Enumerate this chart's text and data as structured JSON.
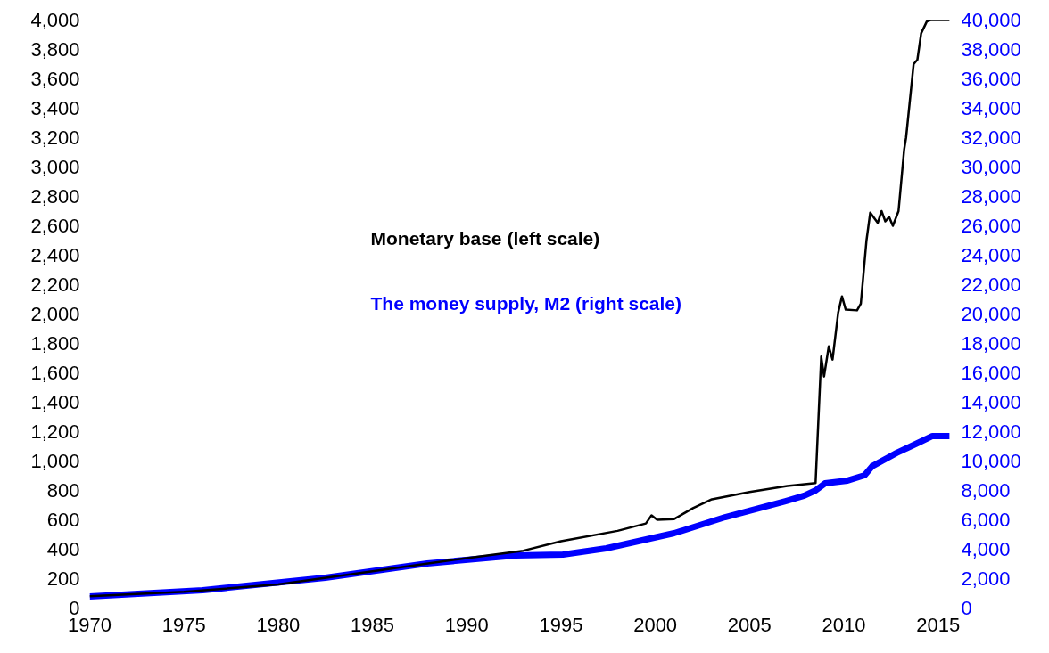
{
  "chart_data": {
    "type": "line",
    "grid": false,
    "xlim": [
      1970,
      2015.7
    ],
    "xticks": [
      1970,
      1975,
      1980,
      1985,
      1990,
      1995,
      2000,
      2005,
      2010,
      2015
    ],
    "ylim": [
      0,
      4000
    ],
    "yticks": [
      0,
      200,
      400,
      600,
      800,
      {
        "value": 1000,
        "label": "1,000"
      },
      {
        "value": 1200,
        "label": "1,200"
      },
      {
        "value": 1400,
        "label": "1,400"
      },
      {
        "value": 1600,
        "label": "1,600"
      },
      {
        "value": 1800,
        "label": "1,800"
      },
      {
        "value": 2000,
        "label": "2,000"
      },
      {
        "value": 2200,
        "label": "2,200"
      },
      {
        "value": 2400,
        "label": "2,400"
      },
      {
        "value": 2600,
        "label": "2,600"
      },
      {
        "value": 2800,
        "label": "2,800"
      },
      {
        "value": 3000,
        "label": "3,000"
      },
      {
        "value": 3200,
        "label": "3,200"
      },
      {
        "value": 3400,
        "label": "3,400"
      },
      {
        "value": 3600,
        "label": "3,600"
      },
      {
        "value": 3800,
        "label": "3,800"
      },
      {
        "value": 4000,
        "label": "4,000"
      }
    ],
    "y2lim": [
      0,
      40000
    ],
    "y2ticks": [
      0,
      {
        "value": 2000,
        "label": "2,000"
      },
      {
        "value": 4000,
        "label": "4,000"
      },
      {
        "value": 6000,
        "label": "6,000"
      },
      {
        "value": 8000,
        "label": "8,000"
      },
      {
        "value": 10000,
        "label": "10,000"
      },
      {
        "value": 12000,
        "label": "12,000"
      },
      {
        "value": 14000,
        "label": "14,000"
      },
      {
        "value": 16000,
        "label": "16,000"
      },
      {
        "value": 18000,
        "label": "18,000"
      },
      {
        "value": 20000,
        "label": "20,000"
      },
      {
        "value": 22000,
        "label": "22,000"
      },
      {
        "value": 24000,
        "label": "24,000"
      },
      {
        "value": 26000,
        "label": "26,000"
      },
      {
        "value": 28000,
        "label": "28,000"
      },
      {
        "value": 30000,
        "label": "30,000"
      },
      {
        "value": 32000,
        "label": "32,000"
      },
      {
        "value": 34000,
        "label": "34,000"
      },
      {
        "value": 36000,
        "label": "36,000"
      },
      {
        "value": 38000,
        "label": "38,000"
      },
      {
        "value": 40000,
        "label": "40,000"
      }
    ],
    "series": [
      {
        "name": "Monetary base (left scale)",
        "color": "#000000",
        "x": [
          1970,
          1975,
          1980,
          1985,
          1990,
          1993,
          1995,
          1998,
          1999.5,
          1999.8,
          2000.1,
          2001,
          2002,
          2003,
          2005,
          2007,
          2008.5,
          2008.8,
          2008.95,
          2009.2,
          2009.4,
          2009.7,
          2009.9,
          2010.1,
          2010.7,
          2010.9,
          2011.2,
          2011.4,
          2011.8,
          2012,
          2012.2,
          2012.4,
          2012.6,
          2012.9,
          2013.2,
          2013.3,
          2013.7,
          2013.9,
          2014.1,
          2014.4,
          2014.6,
          2015.6
        ],
        "values": [
          80,
          110,
          160,
          250,
          340,
          390,
          455,
          525,
          575,
          630,
          600,
          605,
          680,
          740,
          790,
          830,
          850,
          1710,
          1575,
          1780,
          1690,
          2010,
          2120,
          2030,
          2025,
          2070,
          2500,
          2690,
          2620,
          2700,
          2630,
          2660,
          2600,
          2700,
          3120,
          3200,
          3700,
          3730,
          3910,
          3990,
          4000,
          4000
        ]
      },
      {
        "name": "The money supply, M2 (right scale)",
        "color": "#0000ff",
        "axis": "y2",
        "x": [
          1970,
          1976,
          1982.5,
          1987.9,
          1992.6,
          1995.1,
          1997.4,
          2001,
          2003.7,
          2006.9,
          2007.9,
          2008.5,
          2009,
          2010.2,
          2011.1,
          2011.5,
          2012.8,
          2013.9,
          2014.7,
          2015.6
        ],
        "values": [
          790,
          1210,
          2060,
          3030,
          3580,
          3640,
          4060,
          5090,
          6180,
          7270,
          7640,
          8000,
          8480,
          8670,
          9030,
          9640,
          10550,
          11210,
          11700,
          11700
        ]
      }
    ]
  }
}
